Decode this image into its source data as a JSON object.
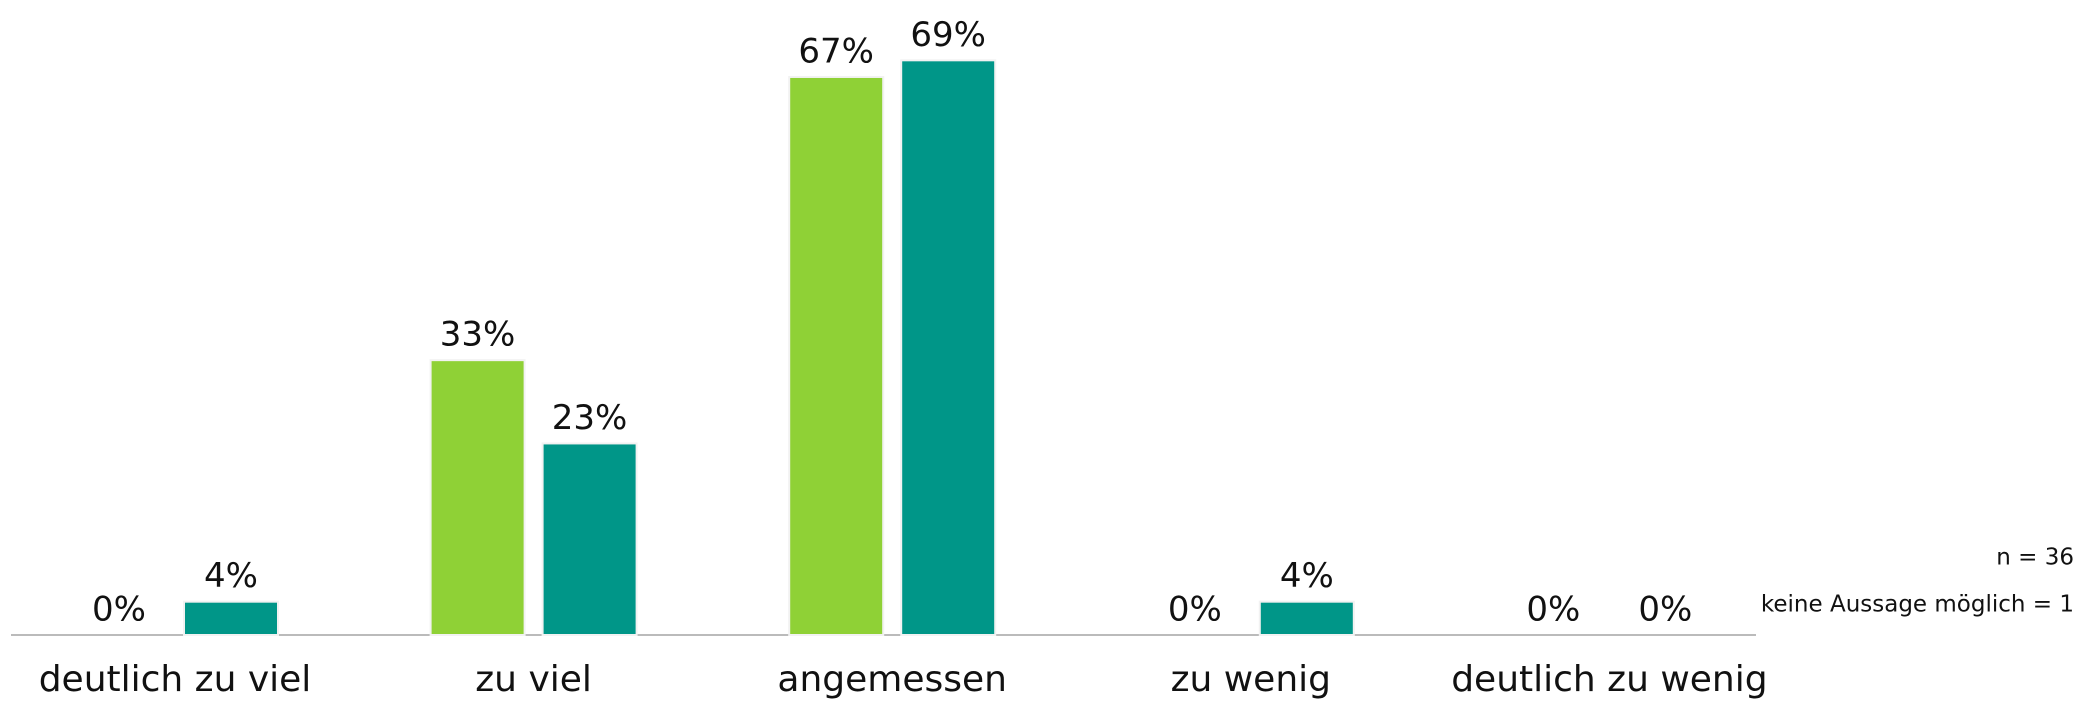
{
  "chart_data": {
    "type": "bar",
    "categories": [
      "deutlich zu viel",
      "zu viel",
      "angemessen",
      "zu wenig",
      "deutlich zu wenig"
    ],
    "series": [
      {
        "color": "#8fd136",
        "values": [
          0,
          33,
          67,
          0,
          0
        ],
        "value_labels": [
          "0%",
          "33%",
          "67%",
          "0%",
          "0%"
        ]
      },
      {
        "color": "#009688",
        "values": [
          4,
          23,
          69,
          4,
          0
        ],
        "value_labels": [
          "4%",
          "23%",
          "69%",
          "4%",
          "0%"
        ]
      }
    ],
    "ylim": [
      0,
      73
    ],
    "annotations": [
      "n = 36",
      "keine Aussage möglich = 1"
    ]
  }
}
